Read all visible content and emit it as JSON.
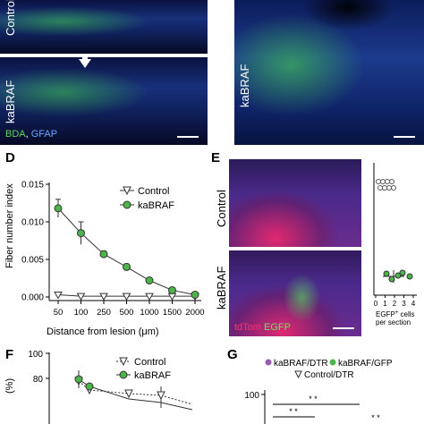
{
  "panel_letters": {
    "d": "D",
    "e": "E",
    "f": "F",
    "g": "G"
  },
  "panel_a": {
    "label_top": "Control",
    "label_bottom": "kaBRAF",
    "stain_bda": "BDA",
    "stain_sep": ",",
    "stain_gfap": "GFAP"
  },
  "panel_b": {
    "label": "kaBRAF"
  },
  "panel_e": {
    "label_top": "Control",
    "label_bottom": "kaBRAF",
    "stain_tdtomato": "tdTom",
    "stain_egfp": "EGFP",
    "inset_xticks": [
      "0",
      "1",
      "2",
      "3",
      "4"
    ],
    "inset_xlabel_1": "EGFP",
    "inset_xlabel_sup": "+",
    "inset_xlabel_2": " cells",
    "inset_xlabel_3": "per section"
  },
  "colors": {
    "bda": "#5fd35a",
    "gfap": "#69a6ff",
    "egfp": "#6fe06a",
    "tdtomato": "#ff2d6f",
    "kabraf": "#4bb54a"
  },
  "chart_data": [
    {
      "type": "line",
      "xlabel_prefix": "Distance from lesion (",
      "xlabel_unit": "μm",
      "xlabel_suffix": ")",
      "ylabel": "Fiber number index",
      "categories": [
        "50",
        "100",
        "250",
        "500",
        "1000",
        "1500",
        "2000"
      ],
      "yticks": [
        "0.000",
        "0.005",
        "0.010",
        "0.015"
      ],
      "ylim": [
        0,
        0.015
      ],
      "legend_placement": "top-right",
      "series": [
        {
          "name": "Control",
          "marker": "triangle-down",
          "values": [
            0.0003,
            0.0001,
            0.0001,
            0.0001,
            0.0001,
            0.0001,
            0.0001
          ],
          "err": [
            0,
            0,
            0,
            0,
            0,
            0,
            0
          ]
        },
        {
          "name": "kaBRAF",
          "marker": "circle",
          "values": [
            0.0118,
            0.0085,
            0.0057,
            0.004,
            0.0022,
            0.0009,
            0.0003
          ],
          "err": [
            0.0012,
            0.0015,
            0.0004,
            0.0004,
            0.0003,
            0.0002,
            0.0001
          ]
        }
      ]
    },
    {
      "type": "line",
      "ylabel": "(%)",
      "yticks": [
        "80",
        "100"
      ],
      "legend_placement": "top-right",
      "series": [
        {
          "name": "Control",
          "marker": "triangle-down",
          "values": [
            78,
            70,
            69,
            66,
            65,
            62
          ]
        },
        {
          "name": "kaBRAF",
          "marker": "circle",
          "values": [
            80,
            72,
            64,
            60,
            58,
            55
          ]
        }
      ]
    },
    {
      "type": "scatter",
      "legend": [
        {
          "name": "kaBRAF/DTR",
          "marker": "circle"
        },
        {
          "name": "kaBRAF/GFP",
          "marker": "circle"
        },
        {
          "name": "Control/DTR",
          "marker": "triangle-down"
        }
      ],
      "yticks": [
        "100"
      ],
      "significance": [
        "* *",
        "* *",
        "* *"
      ]
    }
  ]
}
